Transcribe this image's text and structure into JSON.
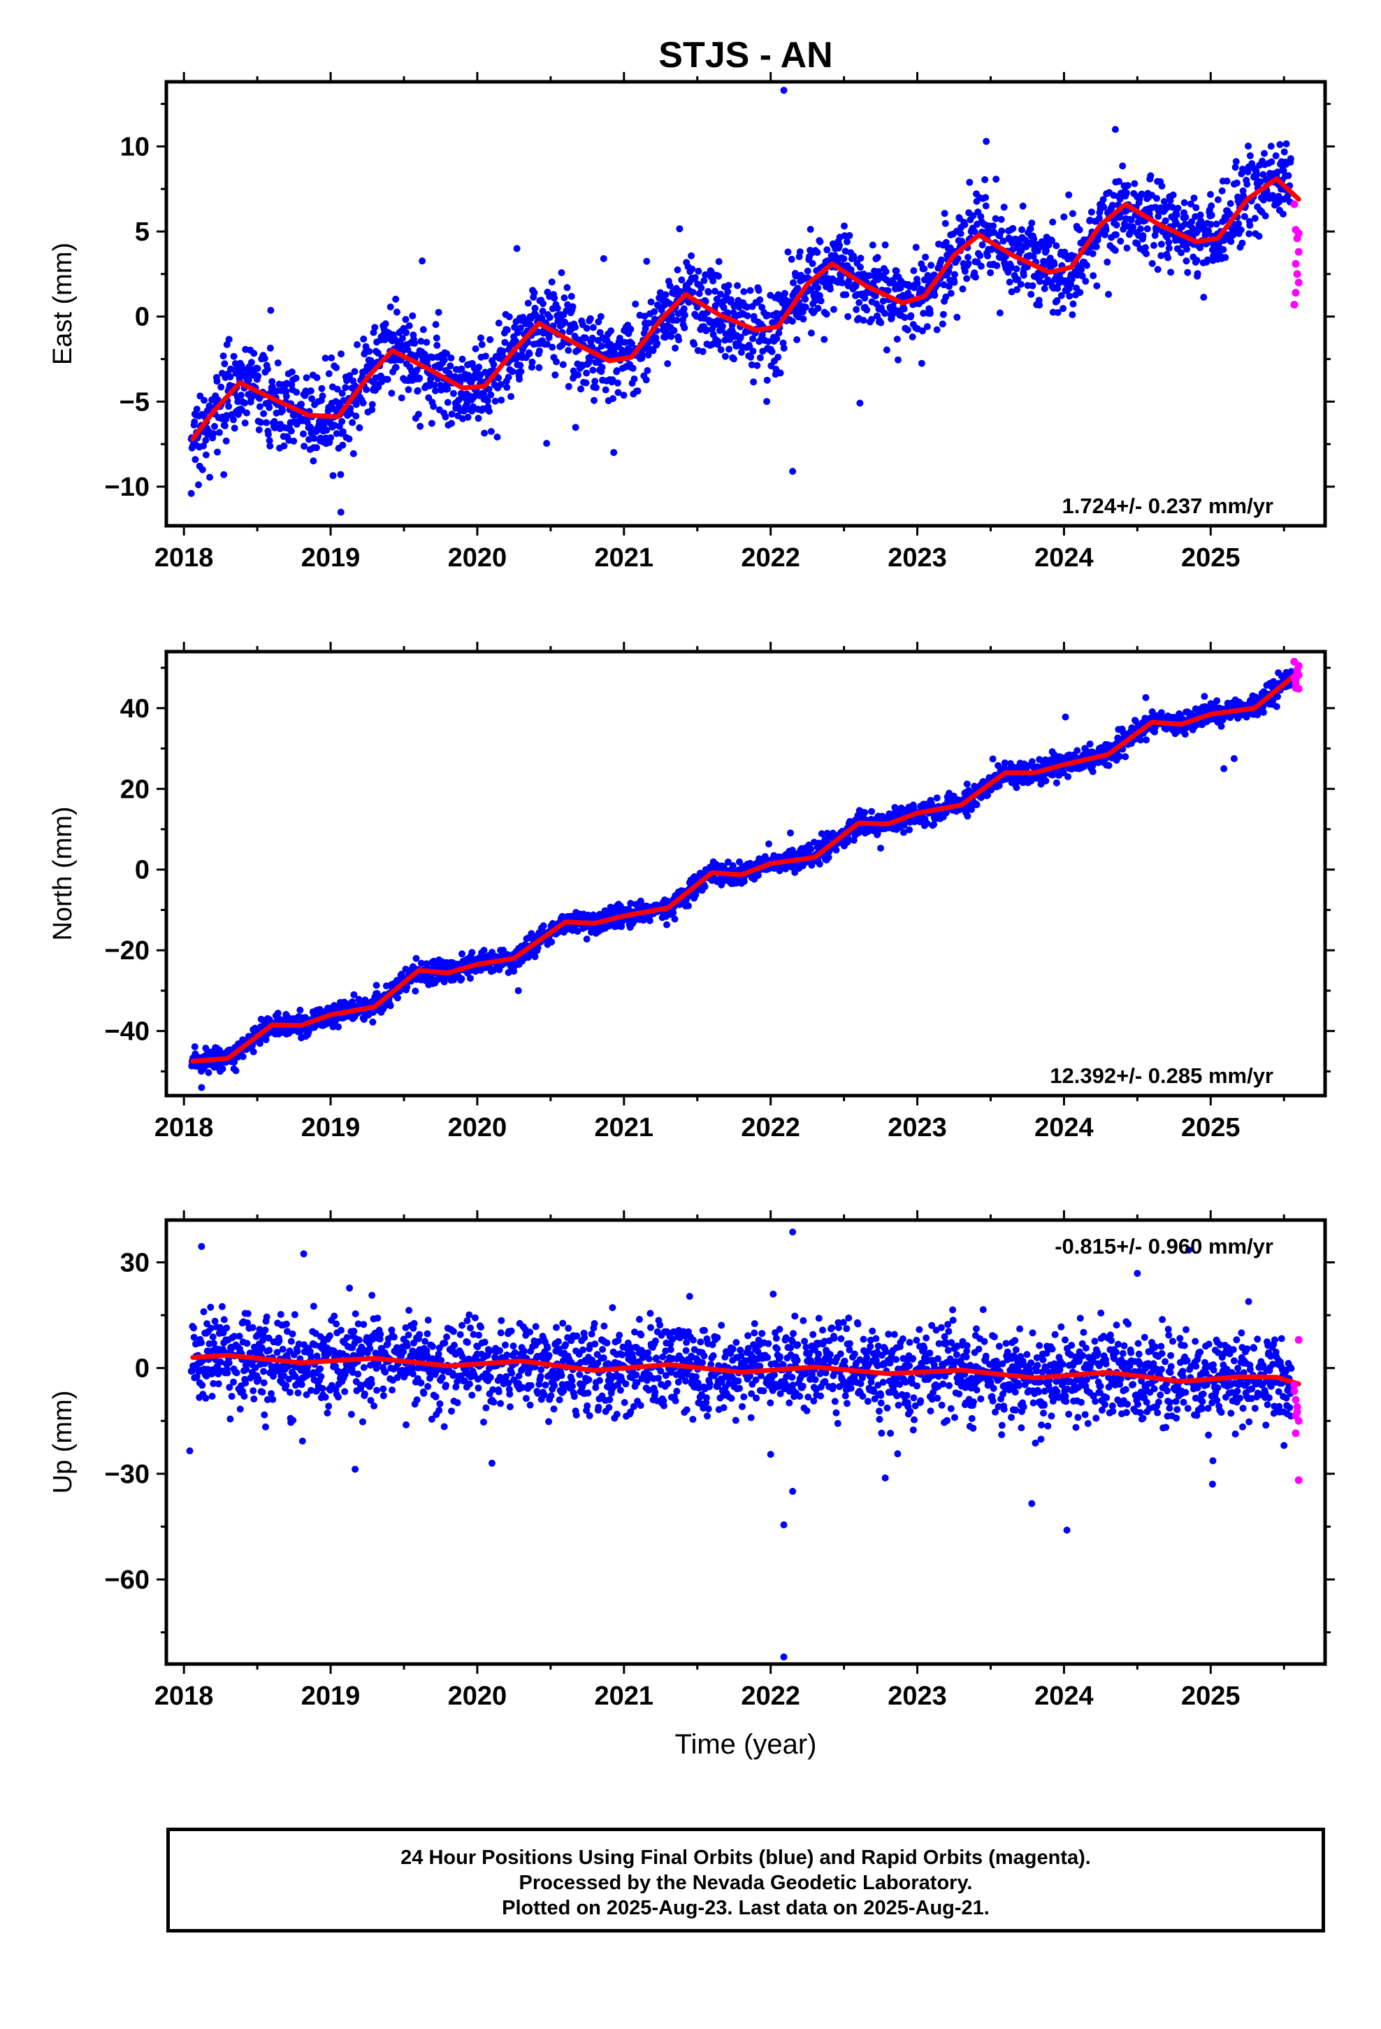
{
  "title": "STJS - AN",
  "xlabel": "Time (year)",
  "colors": {
    "final_orbits": "#0000ff",
    "rapid_orbits": "#ff00ff",
    "model": "#ff0000",
    "frame": "#000000"
  },
  "footer": {
    "line1": "24 Hour Positions Using Final Orbits (blue) and Rapid Orbits (magenta).",
    "line2": "Processed by the Nevada Geodetic Laboratory.",
    "line3": "Plotted on 2025-Aug-23. Last data on 2025-Aug-21."
  },
  "chart_data": [
    {
      "type": "scatter",
      "panel": "east",
      "ylabel": "East (mm)",
      "rate_label": "1.724+/- 0.237 mm/yr",
      "xlim": [
        2017.88,
        2025.78
      ],
      "ylim": [
        -12.3,
        13.8
      ],
      "xticks": [
        2018,
        2019,
        2020,
        2021,
        2022,
        2023,
        2024,
        2025
      ],
      "yticks": [
        -10,
        -5,
        0,
        5,
        10
      ],
      "ytick_labels": [
        "−10",
        "−5",
        "0",
        "5",
        "10"
      ],
      "grid": false,
      "trend": {
        "start": 2018.05,
        "end": 2025.55,
        "rate": 1.724,
        "offset": -5.4,
        "annual_amplitude": 1.6,
        "annual_peak": 2018.45,
        "noise_sd": 1.25
      },
      "model_curve": [
        [
          2018.06,
          -7.2
        ],
        [
          2018.2,
          -5.6
        ],
        [
          2018.38,
          -3.9
        ],
        [
          2018.6,
          -4.8
        ],
        [
          2018.85,
          -5.8
        ],
        [
          2019.05,
          -5.9
        ],
        [
          2019.25,
          -3.6
        ],
        [
          2019.42,
          -2.0
        ],
        [
          2019.65,
          -3.0
        ],
        [
          2019.9,
          -4.2
        ],
        [
          2020.05,
          -4.1
        ],
        [
          2020.25,
          -2.0
        ],
        [
          2020.42,
          -0.4
        ],
        [
          2020.65,
          -1.5
        ],
        [
          2020.9,
          -2.6
        ],
        [
          2021.05,
          -2.4
        ],
        [
          2021.25,
          -0.2
        ],
        [
          2021.42,
          1.3
        ],
        [
          2021.65,
          0.1
        ],
        [
          2021.9,
          -0.8
        ],
        [
          2022.05,
          -0.6
        ],
        [
          2022.25,
          1.9
        ],
        [
          2022.42,
          3.1
        ],
        [
          2022.65,
          1.8
        ],
        [
          2022.9,
          0.8
        ],
        [
          2023.05,
          1.2
        ],
        [
          2023.25,
          3.6
        ],
        [
          2023.42,
          4.8
        ],
        [
          2023.65,
          3.6
        ],
        [
          2023.9,
          2.6
        ],
        [
          2024.05,
          2.9
        ],
        [
          2024.25,
          5.4
        ],
        [
          2024.42,
          6.6
        ],
        [
          2024.65,
          5.4
        ],
        [
          2024.9,
          4.4
        ],
        [
          2025.05,
          4.6
        ],
        [
          2025.25,
          6.9
        ],
        [
          2025.45,
          8.1
        ],
        [
          2025.6,
          6.9
        ]
      ],
      "rapid_points": [
        [
          2025.57,
          6.6
        ],
        [
          2025.58,
          5.1
        ],
        [
          2025.59,
          4.6
        ],
        [
          2025.6,
          3.8
        ],
        [
          2025.58,
          3.1
        ],
        [
          2025.59,
          2.5
        ],
        [
          2025.6,
          2.0
        ],
        [
          2025.58,
          1.4
        ],
        [
          2025.57,
          0.7
        ],
        [
          2025.6,
          4.9
        ]
      ],
      "outliers": [
        [
          2022.09,
          13.3
        ],
        [
          2022.15,
          -9.1
        ],
        [
          2018.05,
          -10.4
        ],
        [
          2019.07,
          -11.5
        ],
        [
          2023.47,
          10.3
        ],
        [
          2024.35,
          11.0
        ],
        [
          2020.27,
          4.0
        ]
      ]
    },
    {
      "type": "scatter",
      "panel": "north",
      "ylabel": "North (mm)",
      "rate_label": "12.392+/- 0.285 mm/yr",
      "xlim": [
        2017.88,
        2025.78
      ],
      "ylim": [
        -56,
        54
      ],
      "xticks": [
        2018,
        2019,
        2020,
        2021,
        2022,
        2023,
        2024,
        2025
      ],
      "yticks": [
        -40,
        -20,
        0,
        20,
        40
      ],
      "ytick_labels": [
        "−40",
        "−20",
        "0",
        "20",
        "40"
      ],
      "grid": false,
      "trend": {
        "start": 2018.05,
        "end": 2025.55,
        "rate": 12.392,
        "offset": -46.3,
        "annual_amplitude": 1.3,
        "annual_peak": 2018.62,
        "noise_sd": 1.4
      },
      "model_curve": [
        [
          2018.06,
          -47.5
        ],
        [
          2018.3,
          -46.8
        ],
        [
          2018.6,
          -38.5
        ],
        [
          2018.8,
          -38.6
        ],
        [
          2019.0,
          -36.0
        ],
        [
          2019.3,
          -34.0
        ],
        [
          2019.6,
          -25.0
        ],
        [
          2019.8,
          -25.6
        ],
        [
          2020.0,
          -23.5
        ],
        [
          2020.25,
          -22.0
        ],
        [
          2020.6,
          -13.0
        ],
        [
          2020.8,
          -13.3
        ],
        [
          2021.0,
          -11.5
        ],
        [
          2021.3,
          -9.5
        ],
        [
          2021.6,
          -0.8
        ],
        [
          2021.8,
          -1.3
        ],
        [
          2022.0,
          1.5
        ],
        [
          2022.3,
          3.0
        ],
        [
          2022.6,
          11.5
        ],
        [
          2022.8,
          11.3
        ],
        [
          2023.0,
          14.0
        ],
        [
          2023.3,
          16.0
        ],
        [
          2023.6,
          24.0
        ],
        [
          2023.8,
          24.0
        ],
        [
          2024.0,
          26.0
        ],
        [
          2024.3,
          28.5
        ],
        [
          2024.6,
          36.5
        ],
        [
          2024.8,
          36.0
        ],
        [
          2025.0,
          38.5
        ],
        [
          2025.3,
          40.0
        ],
        [
          2025.6,
          49.0
        ]
      ],
      "rapid_points": [
        [
          2025.57,
          47.5
        ],
        [
          2025.58,
          46.0
        ],
        [
          2025.59,
          48.8
        ],
        [
          2025.6,
          50.5
        ],
        [
          2025.58,
          45.0
        ],
        [
          2025.59,
          49.5
        ],
        [
          2025.6,
          44.8
        ],
        [
          2025.57,
          51.5
        ],
        [
          2025.58,
          47.0
        ],
        [
          2025.6,
          48.2
        ]
      ],
      "outliers": [
        [
          2018.12,
          -54.0
        ],
        [
          2024.01,
          37.8
        ],
        [
          2025.09,
          25.0
        ],
        [
          2025.16,
          27.5
        ],
        [
          2020.28,
          -30.0
        ],
        [
          2022.75,
          5.3
        ]
      ]
    },
    {
      "type": "scatter",
      "panel": "up",
      "ylabel": "Up (mm)",
      "rate_label": "-0.815+/- 0.960 mm/yr",
      "xlim": [
        2017.88,
        2025.78
      ],
      "ylim": [
        -84,
        42
      ],
      "xticks": [
        2018,
        2019,
        2020,
        2021,
        2022,
        2023,
        2024,
        2025
      ],
      "yticks": [
        -60,
        -30,
        0,
        30
      ],
      "ytick_labels": [
        "−60",
        "−30",
        "0",
        "30"
      ],
      "grid": false,
      "trend": {
        "start": 2018.05,
        "end": 2025.55,
        "rate": -0.815,
        "offset": 2.8,
        "annual_amplitude": 1.0,
        "annual_peak": 2018.3,
        "noise_sd": 6.3
      },
      "model_curve": [
        [
          2018.06,
          3.0
        ],
        [
          2018.3,
          3.6
        ],
        [
          2018.8,
          1.5
        ],
        [
          2019.3,
          2.8
        ],
        [
          2019.8,
          0.6
        ],
        [
          2020.3,
          2.0
        ],
        [
          2020.8,
          -0.7
        ],
        [
          2021.3,
          1.0
        ],
        [
          2021.8,
          -1.2
        ],
        [
          2022.3,
          0.3
        ],
        [
          2022.8,
          -1.6
        ],
        [
          2023.3,
          -0.6
        ],
        [
          2023.8,
          -2.8
        ],
        [
          2024.3,
          -1.2
        ],
        [
          2024.8,
          -3.8
        ],
        [
          2025.2,
          -2.5
        ],
        [
          2025.45,
          -2.6
        ],
        [
          2025.6,
          -4.5
        ]
      ],
      "rapid_points": [
        [
          2025.57,
          -4.8
        ],
        [
          2025.58,
          -9.0
        ],
        [
          2025.59,
          -12.5
        ],
        [
          2025.6,
          -15.0
        ],
        [
          2025.58,
          -18.5
        ],
        [
          2025.59,
          -11.0
        ],
        [
          2025.6,
          -31.8
        ],
        [
          2025.57,
          -6.5
        ],
        [
          2025.6,
          8.0
        ],
        [
          2025.58,
          -13.5
        ]
      ],
      "outliers": [
        [
          2018.12,
          34.5
        ],
        [
          2022.15,
          38.6
        ],
        [
          2022.09,
          -44.5
        ],
        [
          2022.15,
          -35.0
        ],
        [
          2022.09,
          -82.0
        ],
        [
          2024.02,
          -46.0
        ],
        [
          2024.85,
          33.5
        ],
        [
          2018.04,
          -23.5
        ],
        [
          2020.1,
          -27.0
        ],
        [
          2022.0,
          -24.5
        ]
      ]
    }
  ]
}
